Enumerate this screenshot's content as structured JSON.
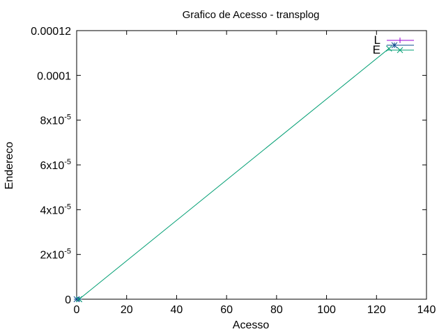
{
  "chart_data": {
    "type": "line",
    "title": "Grafico de Acesso - transplog",
    "xlabel": "Acesso",
    "ylabel": "Endereco",
    "xlim": [
      0,
      140
    ],
    "ylim": [
      0,
      0.00012
    ],
    "x_ticks": [
      {
        "value": 0,
        "label": "0"
      },
      {
        "value": 20,
        "label": "20"
      },
      {
        "value": 40,
        "label": "40"
      },
      {
        "value": 60,
        "label": "60"
      },
      {
        "value": 80,
        "label": "80"
      },
      {
        "value": 100,
        "label": "100"
      },
      {
        "value": 120,
        "label": "120"
      },
      {
        "value": 140,
        "label": "140"
      }
    ],
    "y_ticks": [
      {
        "value": 0,
        "base": "0",
        "exp": ""
      },
      {
        "value": 2e-05,
        "base": "2x10",
        "exp": "-5"
      },
      {
        "value": 4e-05,
        "base": "4x10",
        "exp": "-5"
      },
      {
        "value": 6e-05,
        "base": "6x10",
        "exp": "-5"
      },
      {
        "value": 8e-05,
        "base": "8x10",
        "exp": "-5"
      },
      {
        "value": 0.0001,
        "base": "0.0001",
        "exp": ""
      },
      {
        "value": 0.00012,
        "base": "0.00012",
        "exp": ""
      }
    ],
    "grid": false,
    "legend_position": "top-right",
    "series": [
      {
        "name": "L",
        "color": "#9400d3",
        "marker": "plus",
        "x": [
          0,
          1
        ],
        "y": [
          0,
          0
        ]
      },
      {
        "name": "",
        "color": "#0b4a8c",
        "marker": "star",
        "x": [
          0,
          1
        ],
        "y": [
          0,
          0
        ]
      },
      {
        "name": "E",
        "color": "#009e73",
        "marker": "cross",
        "x": [
          1,
          125
        ],
        "y": [
          0,
          0.000112
        ]
      }
    ]
  }
}
